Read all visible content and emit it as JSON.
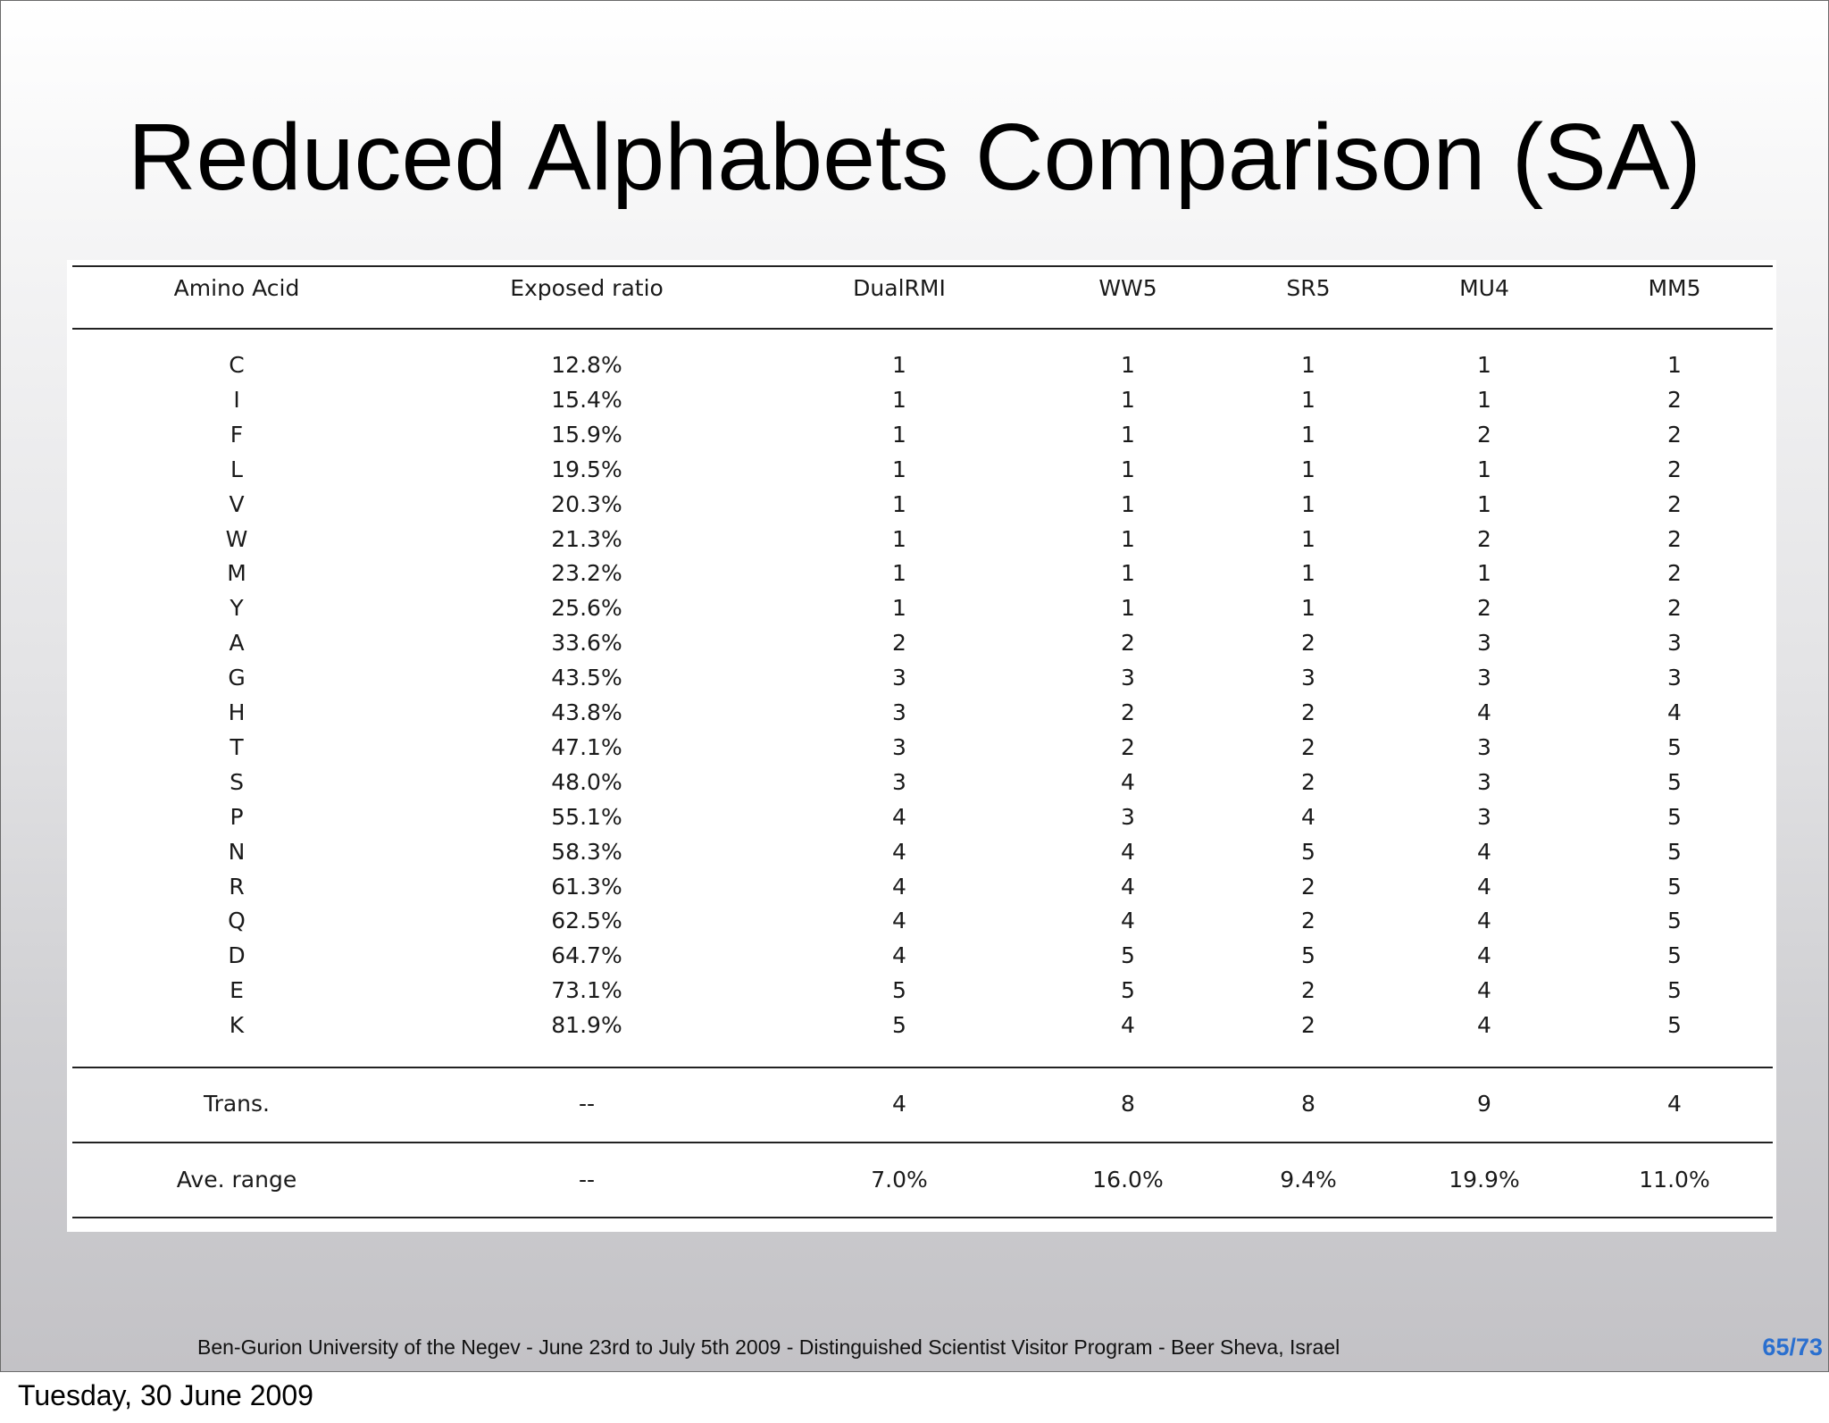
{
  "slide": {
    "title": "Reduced Alphabets Comparison (SA)",
    "footer": "Ben-Gurion University of the Negev - June 23rd to July 5th 2009 -  Distinguished Scientist Visitor Program - Beer Sheva, Israel",
    "page_number": "65/73",
    "date": "Tuesday, 30 June 2009"
  },
  "table": {
    "headers": [
      "Amino Acid",
      "Exposed ratio",
      "DualRMI",
      "WW5",
      "SR5",
      "MU4",
      "MM5"
    ],
    "rows": [
      [
        "C",
        "12.8%",
        "1",
        "1",
        "1",
        "1",
        "1"
      ],
      [
        "I",
        "15.4%",
        "1",
        "1",
        "1",
        "1",
        "2"
      ],
      [
        "F",
        "15.9%",
        "1",
        "1",
        "1",
        "2",
        "2"
      ],
      [
        "L",
        "19.5%",
        "1",
        "1",
        "1",
        "1",
        "2"
      ],
      [
        "V",
        "20.3%",
        "1",
        "1",
        "1",
        "1",
        "2"
      ],
      [
        "W",
        "21.3%",
        "1",
        "1",
        "1",
        "2",
        "2"
      ],
      [
        "M",
        "23.2%",
        "1",
        "1",
        "1",
        "1",
        "2"
      ],
      [
        "Y",
        "25.6%",
        "1",
        "1",
        "1",
        "2",
        "2"
      ],
      [
        "A",
        "33.6%",
        "2",
        "2",
        "2",
        "3",
        "3"
      ],
      [
        "G",
        "43.5%",
        "3",
        "3",
        "3",
        "3",
        "3"
      ],
      [
        "H",
        "43.8%",
        "3",
        "2",
        "2",
        "4",
        "4"
      ],
      [
        "T",
        "47.1%",
        "3",
        "2",
        "2",
        "3",
        "5"
      ],
      [
        "S",
        "48.0%",
        "3",
        "4",
        "2",
        "3",
        "5"
      ],
      [
        "P",
        "55.1%",
        "4",
        "3",
        "4",
        "3",
        "5"
      ],
      [
        "N",
        "58.3%",
        "4",
        "4",
        "5",
        "4",
        "5"
      ],
      [
        "R",
        "61.3%",
        "4",
        "4",
        "2",
        "4",
        "5"
      ],
      [
        "Q",
        "62.5%",
        "4",
        "4",
        "2",
        "4",
        "5"
      ],
      [
        "D",
        "64.7%",
        "4",
        "5",
        "5",
        "4",
        "5"
      ],
      [
        "E",
        "73.1%",
        "5",
        "5",
        "2",
        "4",
        "5"
      ],
      [
        "K",
        "81.9%",
        "5",
        "4",
        "2",
        "4",
        "5"
      ]
    ],
    "summary_rows": [
      [
        "Trans.",
        "--",
        "4",
        "8",
        "8",
        "9",
        "4"
      ],
      [
        "Ave. range",
        "--",
        "7.0%",
        "16.0%",
        "9.4%",
        "19.9%",
        "11.0%"
      ]
    ]
  }
}
